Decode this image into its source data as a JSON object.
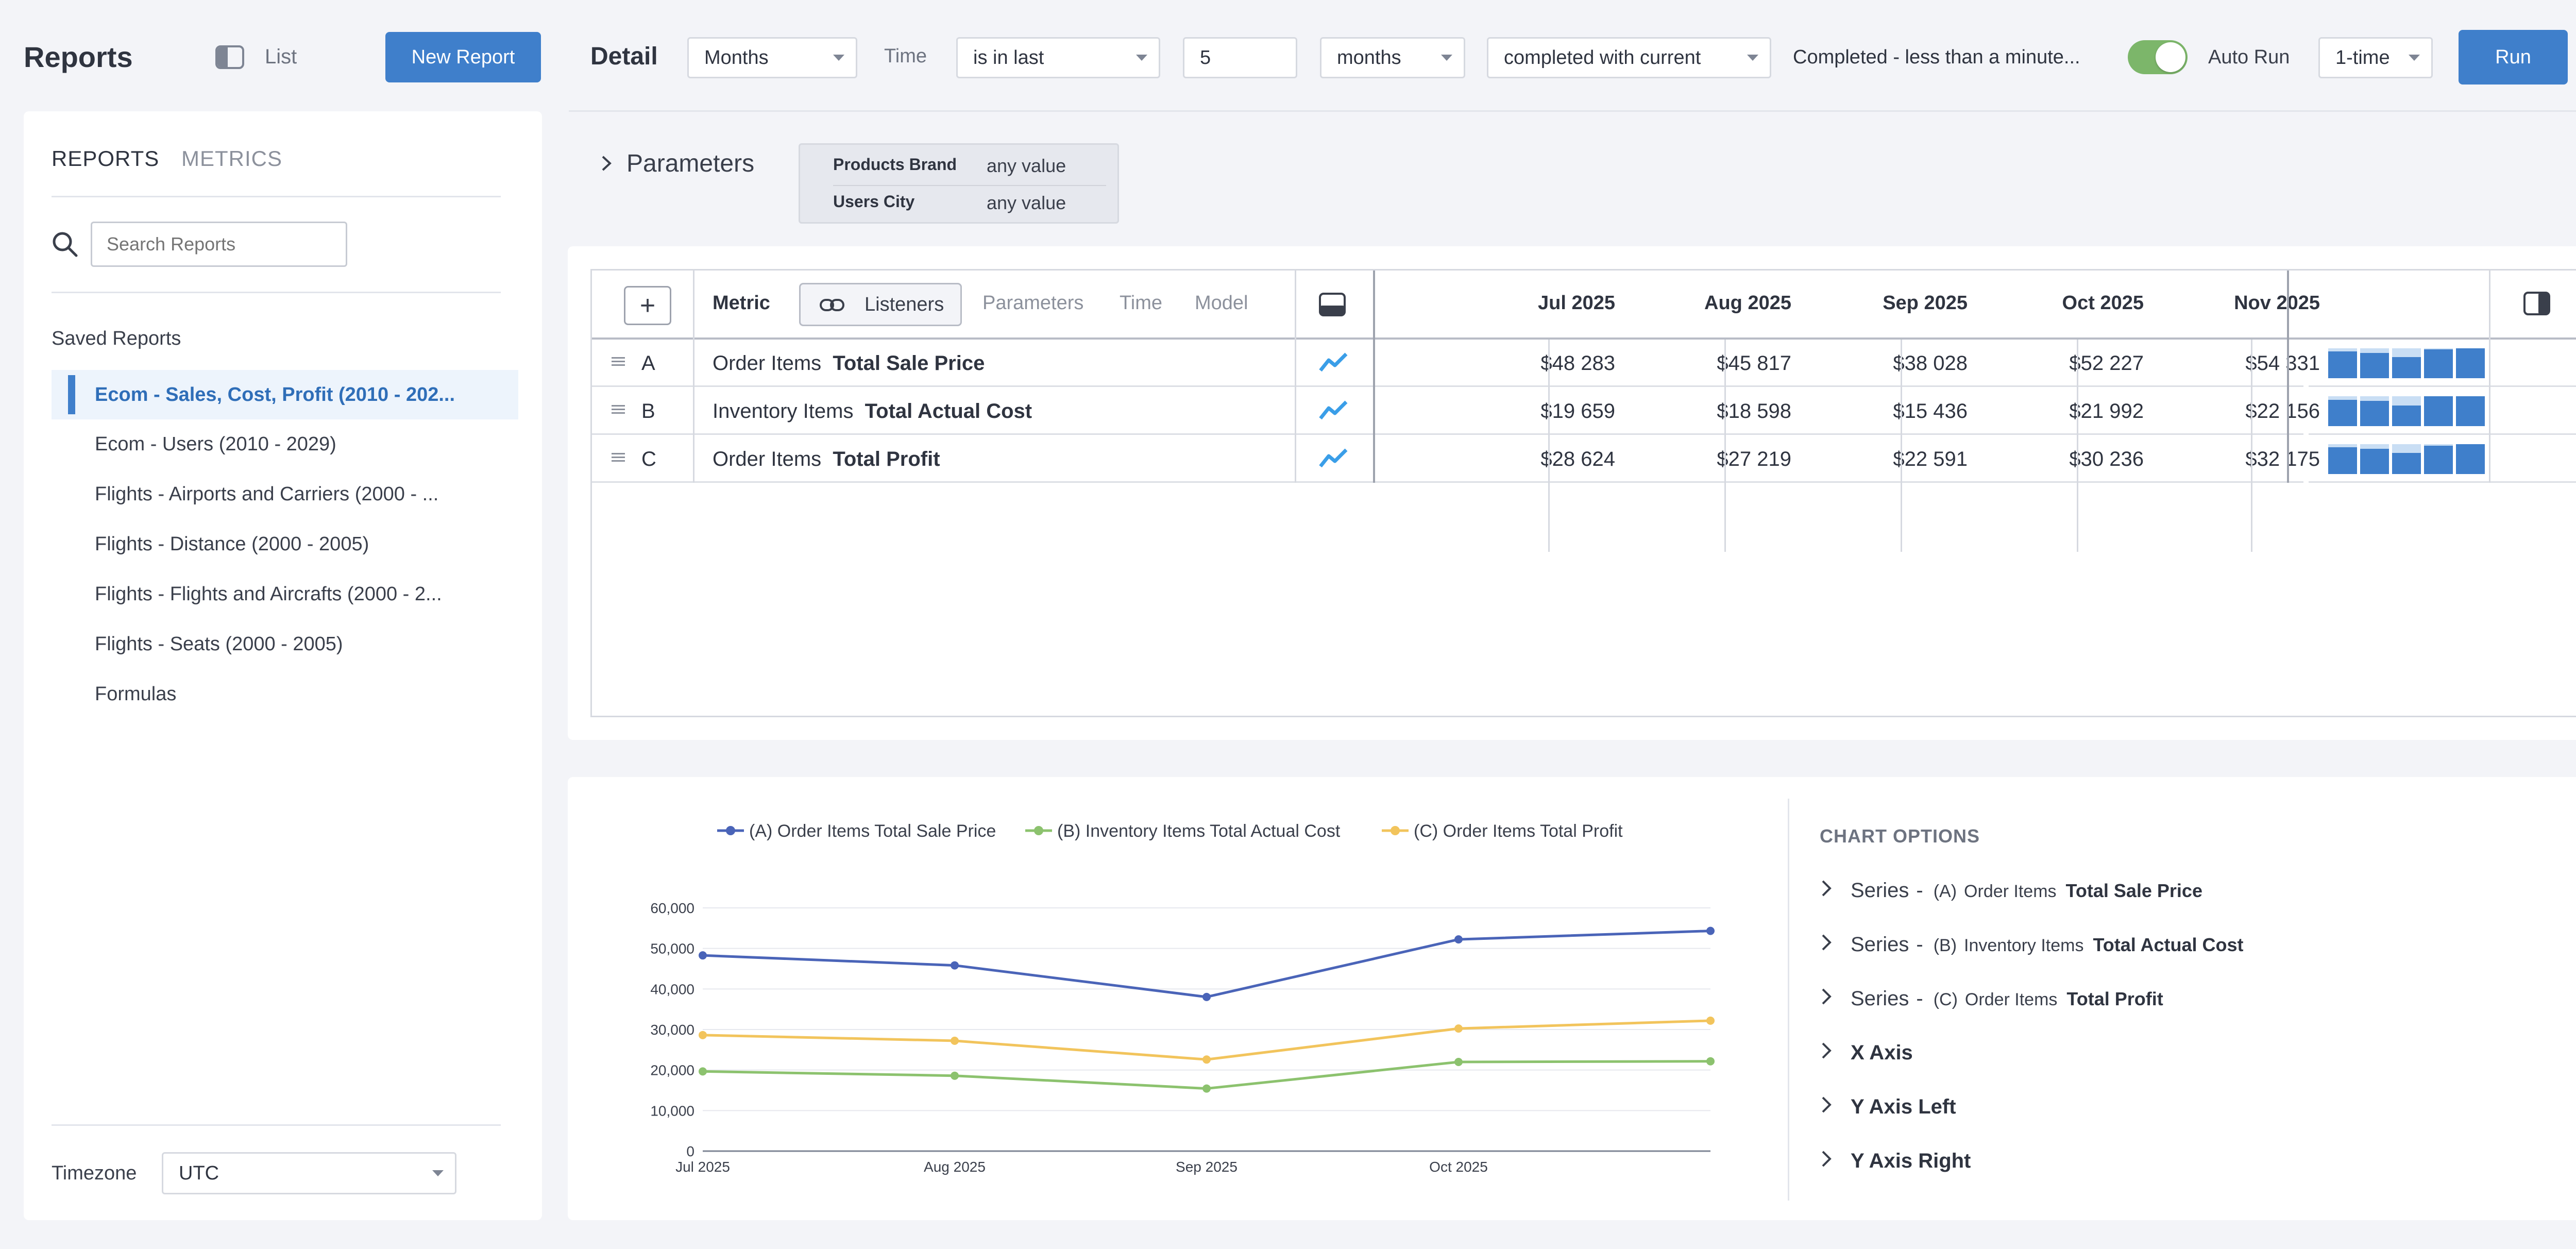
{
  "topbar": {
    "title": "Reports",
    "list_label": "List",
    "new_report": "New Report",
    "detail_label": "Detail",
    "granularity": "Months",
    "time_label": "Time",
    "time_operator": "is in last",
    "time_value": "5",
    "time_unit": "months",
    "completion": "completed with current",
    "status": "Completed - less than a minute...",
    "auto_run_on": true,
    "auto_run_label": "Auto Run",
    "run_frequency": "1-time",
    "run_button": "Run"
  },
  "sidebar": {
    "tabs": [
      "REPORTS",
      "METRICS"
    ],
    "search_placeholder": "Search Reports",
    "saved_title": "Saved Reports",
    "items": [
      {
        "label": "Ecom - Sales, Cost, Profit (2010 - 202...",
        "active": true
      },
      {
        "label": "Ecom - Users (2010 - 2029)"
      },
      {
        "label": "Flights - Airports and Carriers (2000 - ..."
      },
      {
        "label": "Flights - Distance (2000 - 2005)"
      },
      {
        "label": "Flights - Flights and Aircrafts (2000 - 2..."
      },
      {
        "label": "Flights - Seats (2000 - 2005)"
      },
      {
        "label": "Formulas"
      }
    ],
    "timezone_label": "Timezone",
    "timezone": "UTC"
  },
  "parameters": {
    "title": "Parameters",
    "items": [
      {
        "key": "Products Brand",
        "value": "any value"
      },
      {
        "key": "Users City",
        "value": "any value"
      }
    ]
  },
  "table": {
    "header": {
      "metric": "Metric",
      "listeners": "Listeners",
      "parameters": "Parameters",
      "time": "Time",
      "model": "Model"
    },
    "months": [
      "Jul 2025",
      "Aug 2025",
      "Sep 2025",
      "Oct 2025",
      "Nov 2025"
    ],
    "rows": [
      {
        "letter": "A",
        "source": "Order Items",
        "measure": "Total Sale Price",
        "values": [
          "$48 283",
          "$45 817",
          "$38 028",
          "$52 227",
          "$54 331"
        ]
      },
      {
        "letter": "B",
        "source": "Inventory Items",
        "measure": "Total Actual Cost",
        "values": [
          "$19 659",
          "$18 598",
          "$15 436",
          "$21 992",
          "$22 156"
        ]
      },
      {
        "letter": "C",
        "source": "Order Items",
        "measure": "Total Profit",
        "values": [
          "$28 624",
          "$27 219",
          "$22 591",
          "$30 236",
          "$32 175"
        ]
      }
    ]
  },
  "chart_options": {
    "title": "CHART OPTIONS",
    "series_word": "Series",
    "series": [
      {
        "letter": "(A)",
        "source": "Order Items",
        "measure": "Total Sale Price"
      },
      {
        "letter": "(B)",
        "source": "Inventory Items",
        "measure": "Total Actual Cost"
      },
      {
        "letter": "(C)",
        "source": "Order Items",
        "measure": "Total Profit"
      }
    ],
    "axes": [
      "X Axis",
      "Y Axis Left",
      "Y Axis Right"
    ]
  },
  "chart_data": {
    "type": "line",
    "x": [
      "Jul 2025",
      "Aug 2025",
      "Sep 2025",
      "Oct 2025",
      "Nov 2025"
    ],
    "x_tick_labels": [
      "Jul 2025",
      "Aug 2025",
      "Sep 2025",
      "Oct 2025"
    ],
    "y_ticks": [
      0,
      10000,
      20000,
      30000,
      40000,
      50000,
      60000
    ],
    "y_tick_labels": [
      "0",
      "10,000",
      "20,000",
      "30,000",
      "40,000",
      "50,000",
      "60,000"
    ],
    "ylim": [
      0,
      60000
    ],
    "grid": true,
    "legend_position": "top",
    "series": [
      {
        "name": "(A) Order Items Total Sale Price",
        "color": "#4a64b8",
        "values": [
          48283,
          45817,
          38028,
          52227,
          54331
        ]
      },
      {
        "name": "(B) Inventory Items Total Actual Cost",
        "color": "#8cc26e",
        "values": [
          19659,
          18598,
          15436,
          21992,
          22156
        ]
      },
      {
        "name": "(C) Order Items Total Profit",
        "color": "#f2c45c",
        "values": [
          28624,
          27219,
          22591,
          30236,
          32175
        ]
      }
    ]
  },
  "colors": {
    "accent": "#3f7fcb",
    "toggle_on": "#7cb66a",
    "trend_icon": "#3a9ee8"
  }
}
